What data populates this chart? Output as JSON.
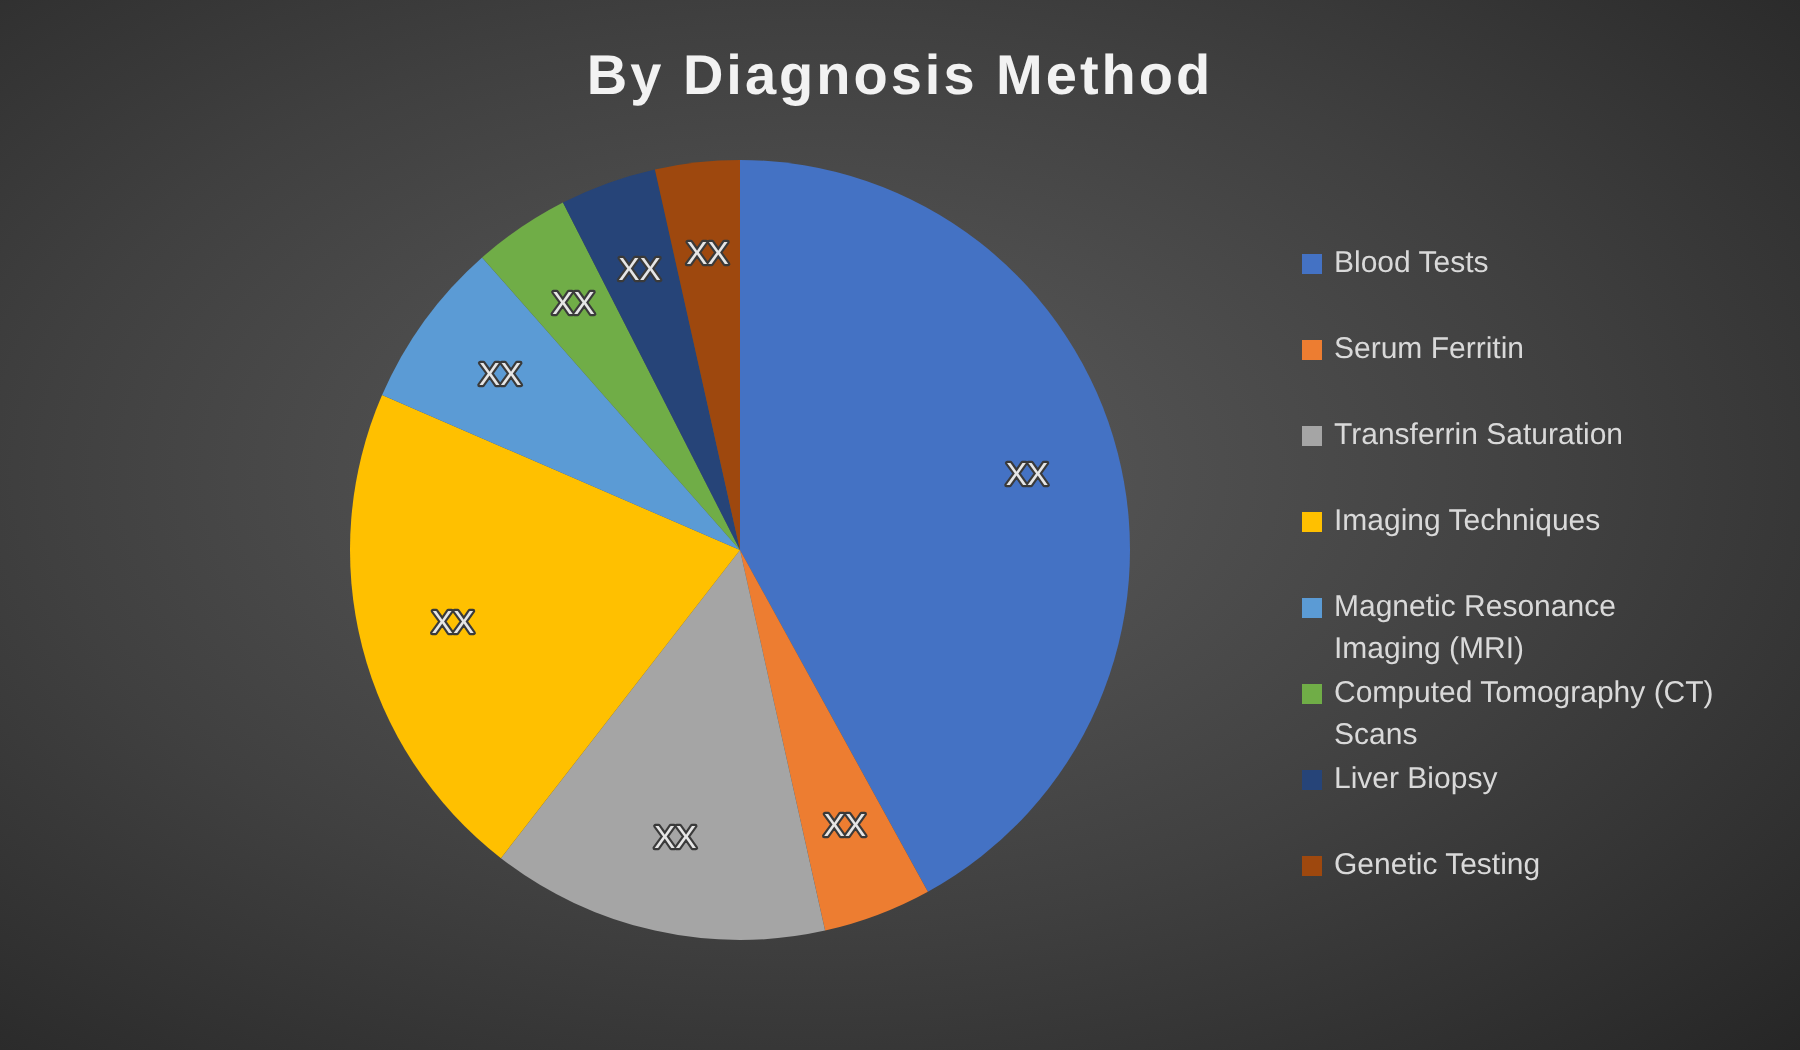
{
  "chart_data": {
    "type": "pie",
    "title": "By Diagnosis Method",
    "categories": [
      "Blood Tests",
      "Serum Ferritin",
      "Transferrin Saturation",
      "Imaging Techniques",
      "Magnetic Resonance Imaging (MRI)",
      "Computed Tomography (CT) Scans",
      "Liver Biopsy",
      "Genetic Testing"
    ],
    "values": [
      42,
      4.5,
      14,
      21,
      7,
      4,
      4,
      3.5
    ],
    "colors": [
      "#4472c4",
      "#ed7d31",
      "#a5a5a5",
      "#ffc000",
      "#5b9bd5",
      "#70ad47",
      "#264478",
      "#9e480e"
    ],
    "value_labels": [
      "XX",
      "XX",
      "XX",
      "XX",
      "XX",
      "XX",
      "XX",
      "XX"
    ],
    "legend": "right"
  }
}
